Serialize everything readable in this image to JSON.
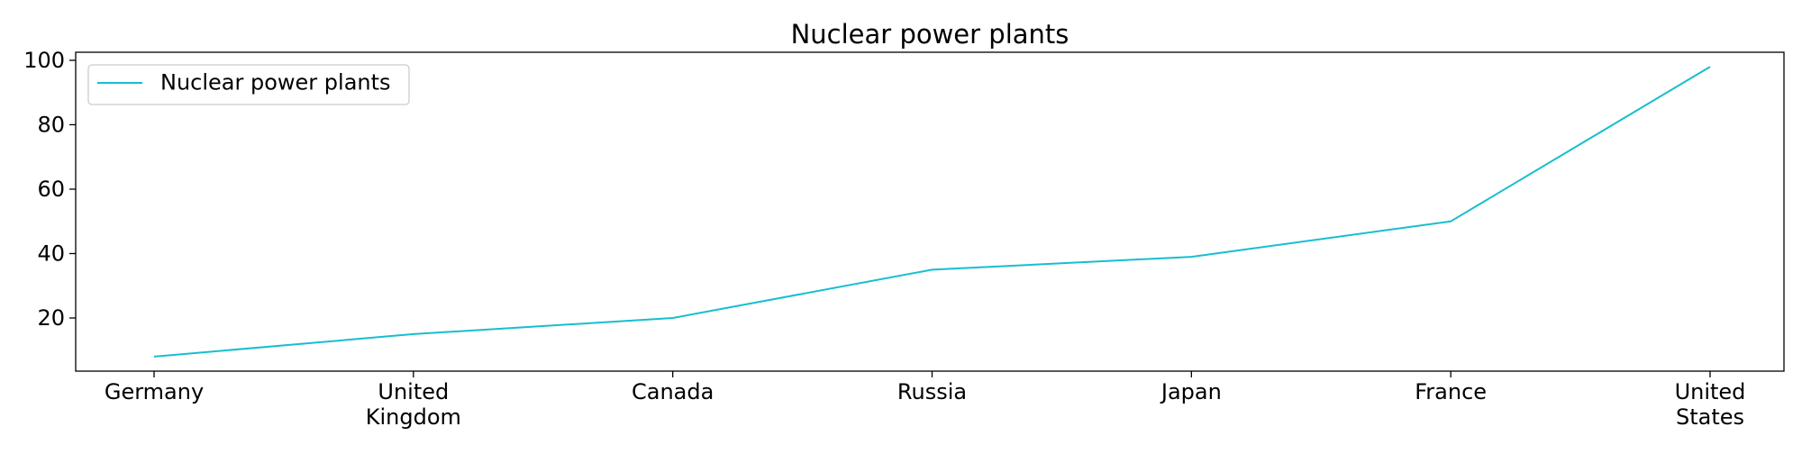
{
  "chart_data": {
    "type": "line",
    "title": "Nuclear power plants",
    "xlabel": "",
    "ylabel": "",
    "categories": [
      "Germany",
      "United Kingdom",
      "Canada",
      "Russia",
      "Japan",
      "France",
      "United States"
    ],
    "category_label_lines": [
      [
        "Germany"
      ],
      [
        "United",
        "Kingdom"
      ],
      [
        "Canada"
      ],
      [
        "Russia"
      ],
      [
        "Japan"
      ],
      [
        "France"
      ],
      [
        "United",
        "States"
      ]
    ],
    "series": [
      {
        "name": "Nuclear power plants",
        "values": [
          8,
          15,
          20,
          35,
          39,
          50,
          98
        ],
        "color": "#17becf"
      }
    ],
    "ylim": [
      3.5,
      102.5
    ],
    "yticks": [
      20,
      40,
      60,
      80,
      100
    ],
    "grid": false,
    "legend": "top-left"
  }
}
